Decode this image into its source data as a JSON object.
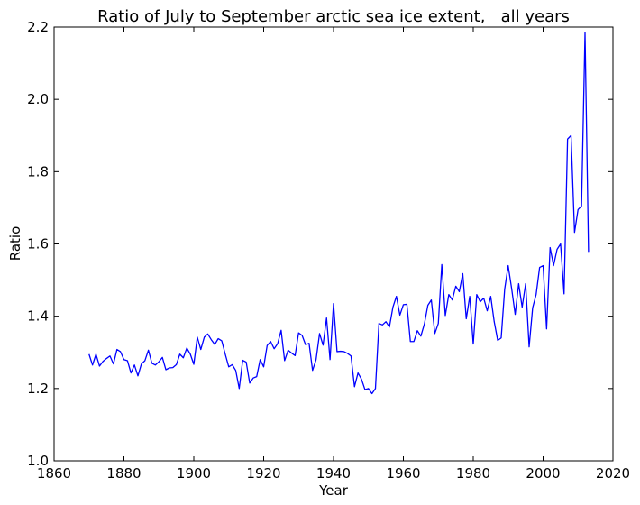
{
  "chart_data": {
    "type": "line",
    "title": "Ratio of July to September arctic sea ice extent,   all years",
    "xlabel": "Year",
    "ylabel": "Ratio",
    "xlim": [
      1860,
      2020
    ],
    "ylim": [
      1.0,
      2.2
    ],
    "xticks": [
      1860,
      1880,
      1900,
      1920,
      1940,
      1960,
      1980,
      2000,
      2020
    ],
    "yticks": [
      "1.0",
      "1.2",
      "1.4",
      "1.6",
      "1.8",
      "2.0",
      "2.2"
    ],
    "grid": false,
    "series": [
      {
        "color": "#0000ff",
        "x": [
          1870,
          1871,
          1872,
          1873,
          1874,
          1875,
          1876,
          1877,
          1878,
          1879,
          1880,
          1881,
          1882,
          1883,
          1884,
          1885,
          1886,
          1887,
          1888,
          1889,
          1890,
          1891,
          1892,
          1893,
          1894,
          1895,
          1896,
          1897,
          1898,
          1899,
          1900,
          1901,
          1902,
          1903,
          1904,
          1905,
          1906,
          1907,
          1908,
          1909,
          1910,
          1911,
          1912,
          1913,
          1914,
          1915,
          1916,
          1917,
          1918,
          1919,
          1920,
          1921,
          1922,
          1923,
          1924,
          1925,
          1926,
          1927,
          1928,
          1929,
          1930,
          1931,
          1932,
          1933,
          1934,
          1935,
          1936,
          1937,
          1938,
          1939,
          1940,
          1941,
          1942,
          1943,
          1944,
          1945,
          1946,
          1947,
          1948,
          1949,
          1950,
          1951,
          1952,
          1953,
          1954,
          1955,
          1956,
          1957,
          1958,
          1959,
          1960,
          1961,
          1962,
          1963,
          1964,
          1965,
          1966,
          1967,
          1968,
          1969,
          1970,
          1971,
          1972,
          1973,
          1974,
          1975,
          1976,
          1977,
          1978,
          1979,
          1980,
          1981,
          1982,
          1983,
          1984,
          1985,
          1986,
          1987,
          1988,
          1989,
          1990,
          1991,
          1992,
          1993,
          1994,
          1995,
          1996,
          1997,
          1998,
          1999,
          2000,
          2001,
          2002,
          2003,
          2004,
          2005,
          2006,
          2007,
          2008,
          2009,
          2010,
          2011,
          2012,
          2013
        ],
        "y": [
          1.295,
          1.265,
          1.295,
          1.262,
          1.275,
          1.283,
          1.29,
          1.268,
          1.308,
          1.302,
          1.28,
          1.277,
          1.243,
          1.265,
          1.235,
          1.268,
          1.277,
          1.306,
          1.27,
          1.265,
          1.274,
          1.286,
          1.252,
          1.257,
          1.258,
          1.266,
          1.295,
          1.285,
          1.312,
          1.295,
          1.267,
          1.342,
          1.308,
          1.342,
          1.351,
          1.335,
          1.322,
          1.338,
          1.332,
          1.295,
          1.26,
          1.266,
          1.25,
          1.2,
          1.278,
          1.273,
          1.215,
          1.229,
          1.233,
          1.28,
          1.26,
          1.319,
          1.33,
          1.31,
          1.324,
          1.361,
          1.277,
          1.306,
          1.298,
          1.291,
          1.354,
          1.347,
          1.321,
          1.325,
          1.25,
          1.28,
          1.352,
          1.32,
          1.395,
          1.28,
          1.435,
          1.302,
          1.303,
          1.302,
          1.297,
          1.29,
          1.205,
          1.243,
          1.226,
          1.197,
          1.2,
          1.186,
          1.2,
          1.38,
          1.376,
          1.385,
          1.37,
          1.425,
          1.455,
          1.403,
          1.432,
          1.433,
          1.33,
          1.33,
          1.36,
          1.345,
          1.378,
          1.43,
          1.445,
          1.352,
          1.38,
          1.543,
          1.402,
          1.46,
          1.445,
          1.483,
          1.468,
          1.518,
          1.393,
          1.455,
          1.323,
          1.46,
          1.44,
          1.45,
          1.415,
          1.455,
          1.385,
          1.333,
          1.34,
          1.475,
          1.54,
          1.476,
          1.405,
          1.49,
          1.425,
          1.49,
          1.315,
          1.423,
          1.46,
          1.535,
          1.54,
          1.365,
          1.59,
          1.54,
          1.585,
          1.6,
          1.462,
          1.89,
          1.9,
          1.632,
          1.695,
          1.705,
          2.185,
          1.578
        ]
      }
    ]
  }
}
